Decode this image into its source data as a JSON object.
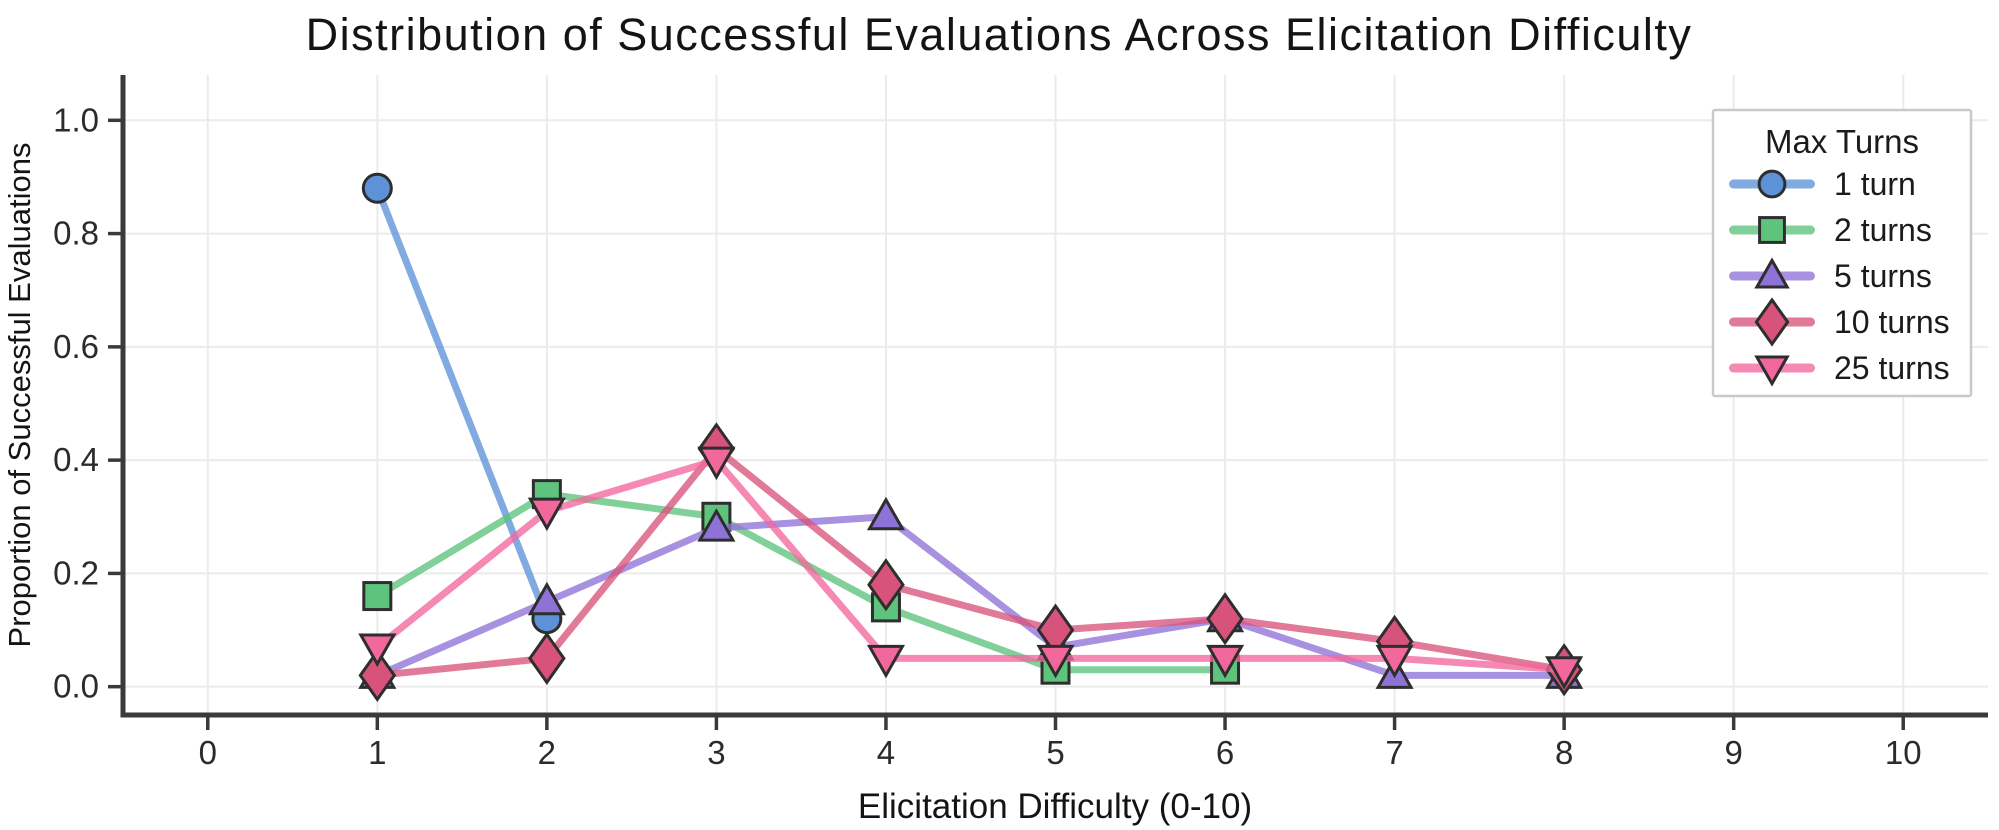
{
  "chart_data": {
    "type": "line",
    "title": "Distribution of Successful Evaluations Across Elicitation Difficulty",
    "xlabel": "Elicitation Difficulty (0-10)",
    "ylabel": "Proportion of Successful Evaluations",
    "xlim": [
      -0.5,
      10.5
    ],
    "ylim": [
      -0.05,
      1.08
    ],
    "x_ticks": [
      0,
      1,
      2,
      3,
      4,
      5,
      6,
      7,
      8,
      9,
      10
    ],
    "x_tick_labels": [
      "0",
      "1",
      "2",
      "3",
      "4",
      "5",
      "6",
      "7",
      "8",
      "9",
      "10"
    ],
    "y_ticks": [
      0.0,
      0.2,
      0.4,
      0.6,
      0.8,
      1.0
    ],
    "y_tick_labels": [
      "0.0",
      "0.2",
      "0.4",
      "0.6",
      "0.8",
      "1.0"
    ],
    "grid": true,
    "legend": {
      "title": "Max Turns",
      "position": "upper right"
    },
    "series": [
      {
        "name": "1 turn",
        "marker": "circle",
        "color": "#5E92D8",
        "x": [
          1,
          2
        ],
        "y": [
          0.88,
          0.12
        ]
      },
      {
        "name": "2 turns",
        "marker": "square",
        "color": "#5EC37D",
        "x": [
          1,
          2,
          3,
          4,
          5,
          6
        ],
        "y": [
          0.16,
          0.34,
          0.3,
          0.14,
          0.03,
          0.03
        ]
      },
      {
        "name": "5 turns",
        "marker": "triangle-up",
        "color": "#8F72D8",
        "x": [
          1,
          2,
          3,
          4,
          5,
          6,
          7,
          8
        ],
        "y": [
          0.02,
          0.15,
          0.28,
          0.3,
          0.07,
          0.12,
          0.02,
          0.02
        ]
      },
      {
        "name": "10 turns",
        "marker": "diamond",
        "color": "#D8537B",
        "x": [
          1,
          2,
          3,
          4,
          5,
          6,
          7,
          8
        ],
        "y": [
          0.02,
          0.05,
          0.42,
          0.18,
          0.1,
          0.12,
          0.08,
          0.03
        ]
      },
      {
        "name": "25 turns",
        "marker": "triangle-down",
        "color": "#F2689D",
        "x": [
          1,
          2,
          3,
          4,
          5,
          6,
          7,
          8
        ],
        "y": [
          0.07,
          0.31,
          0.4,
          0.05,
          0.05,
          0.05,
          0.05,
          0.03
        ]
      }
    ],
    "style": {
      "background": "#ffffff",
      "grid_color": "#EBEBEB",
      "spine_color": "#3A3A3A",
      "tick_color": "#3A3A3A",
      "marker_edge_color": "#2E2E2E",
      "text_color": "#1B1B1B",
      "tick_label_color": "#2B2B2B",
      "legend_border_color": "#C9C9C9",
      "legend_bg": "#ffffff",
      "line_opacity": 0.78
    }
  }
}
